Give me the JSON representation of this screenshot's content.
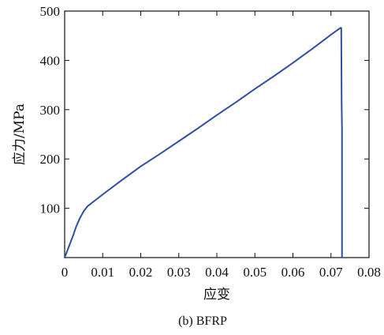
{
  "chart_data": {
    "type": "line",
    "title": "",
    "caption": "(b) BFRP",
    "xlabel": "应变",
    "ylabel": "应力/MPa",
    "xlim": [
      0,
      0.08
    ],
    "ylim": [
      0,
      500
    ],
    "xticks": [
      0,
      0.01,
      0.02,
      0.03,
      0.04,
      0.05,
      0.06,
      0.07,
      0.08
    ],
    "xtick_labels": [
      "0",
      "0.01",
      "0.02",
      "0.03",
      "0.04",
      "0.05",
      "0.06",
      "0.07",
      "0.08"
    ],
    "yticks": [
      100,
      200,
      300,
      400,
      500
    ],
    "ytick_labels": [
      "100",
      "200",
      "300",
      "400",
      "500"
    ],
    "grid": false,
    "legend": "none",
    "series": [
      {
        "color": "#2f4fa3",
        "x": [
          0,
          0.001,
          0.002,
          0.003,
          0.004,
          0.005,
          0.006,
          0.008,
          0.01,
          0.015,
          0.02,
          0.025,
          0.03,
          0.035,
          0.04,
          0.045,
          0.05,
          0.055,
          0.06,
          0.065,
          0.07,
          0.0725,
          0.0727,
          0.0728,
          0.0729,
          0.0729
        ],
        "y": [
          0,
          20,
          40,
          62,
          80,
          94,
          104,
          116,
          128,
          157,
          185,
          210,
          236,
          262,
          289,
          315,
          342,
          368,
          395,
          423,
          452,
          466,
          466,
          314,
          260,
          0
        ]
      }
    ]
  }
}
